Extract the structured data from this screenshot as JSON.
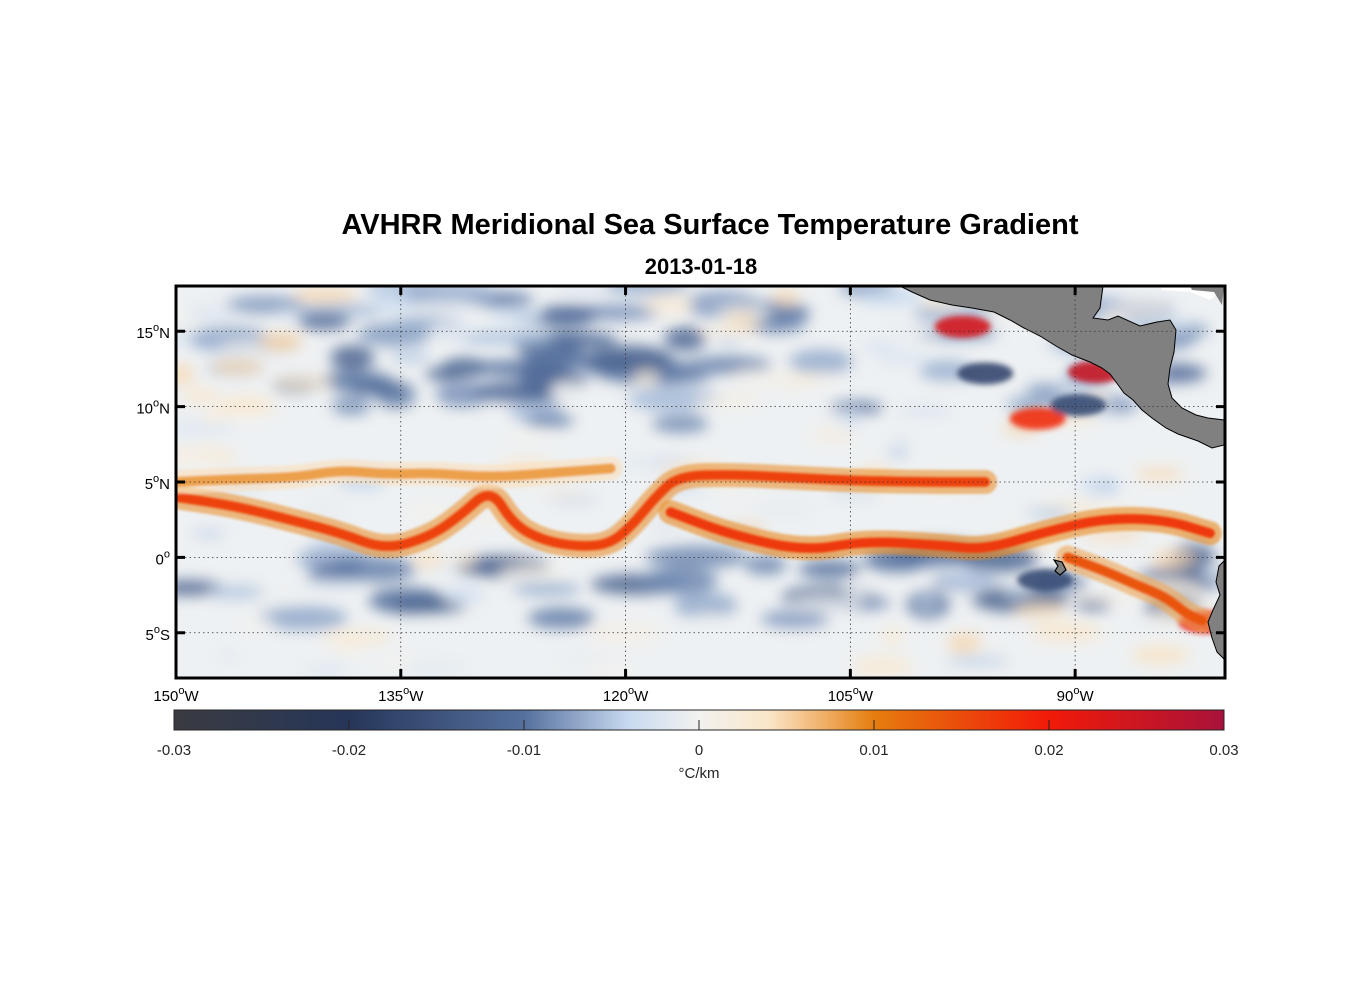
{
  "figure": {
    "title": "AVHRR Meridional Sea Surface Temperature Gradient",
    "subtitle": "2013-01-18"
  },
  "map": {
    "lon_range": [
      -150,
      -80
    ],
    "lat_range": [
      -8,
      18
    ],
    "lon_ticks": [
      {
        "value": -150,
        "deg": "150",
        "hemi": "W"
      },
      {
        "value": -135,
        "deg": "135",
        "hemi": "W"
      },
      {
        "value": -120,
        "deg": "120",
        "hemi": "W"
      },
      {
        "value": -105,
        "deg": "105",
        "hemi": "W"
      },
      {
        "value": -90,
        "deg": "90",
        "hemi": "W"
      }
    ],
    "lat_ticks": [
      {
        "value": 15,
        "deg": "15",
        "hemi": "N"
      },
      {
        "value": 10,
        "deg": "10",
        "hemi": "N"
      },
      {
        "value": 5,
        "deg": "5",
        "hemi": "N"
      },
      {
        "value": 0,
        "deg": "0",
        "hemi": ""
      },
      {
        "value": -5,
        "deg": "5",
        "hemi": "S"
      }
    ],
    "grid": true,
    "grid_style": "dotted",
    "land_color": "#808080"
  },
  "colorbar": {
    "label": "°C/km",
    "range": [
      -0.03,
      0.03
    ],
    "ticks": [
      {
        "value": -0.03,
        "label": "-0.03"
      },
      {
        "value": -0.02,
        "label": "-0.02"
      },
      {
        "value": -0.01,
        "label": "-0.01"
      },
      {
        "value": 0,
        "label": "0"
      },
      {
        "value": 0.01,
        "label": "0.01"
      },
      {
        "value": 0.02,
        "label": "0.02"
      },
      {
        "value": 0.03,
        "label": "0.03"
      }
    ],
    "colors": [
      {
        "value": -0.03,
        "color": "#3a3b40"
      },
      {
        "value": -0.02,
        "color": "#263659"
      },
      {
        "value": -0.01,
        "color": "#55709e"
      },
      {
        "value": -0.004,
        "color": "#c8daf0"
      },
      {
        "value": 0,
        "color": "#f2f2f0"
      },
      {
        "value": 0.004,
        "color": "#fbe6c8"
      },
      {
        "value": 0.01,
        "color": "#e57d0e"
      },
      {
        "value": 0.02,
        "color": "#f21a08"
      },
      {
        "value": 0.03,
        "color": "#a8123a"
      }
    ]
  },
  "chart_data": {
    "type": "heatmap",
    "title": "AVHRR Meridional Sea Surface Temperature Gradient",
    "subtitle": "2013-01-18",
    "variable_units": "°C/km",
    "x_range": [
      -150,
      -80
    ],
    "y_range": [
      -8,
      18
    ],
    "z_range": [
      -0.03,
      0.03
    ],
    "features": [
      {
        "kind": "positive_front",
        "value": 0.016,
        "path": [
          [
            -150,
            4
          ],
          [
            -146,
            3.4
          ],
          [
            -142,
            2.4
          ],
          [
            -139,
            1.6
          ],
          [
            -136,
            0.5
          ],
          [
            -133,
            1.4
          ],
          [
            -131,
            2.8
          ],
          [
            -129,
            4.6
          ],
          [
            -127.5,
            2.2
          ],
          [
            -125.5,
            1.1
          ],
          [
            -123,
            0.7
          ],
          [
            -121,
            0.9
          ],
          [
            -119.5,
            2.2
          ],
          [
            -118,
            4.0
          ],
          [
            -116.5,
            5.4
          ],
          [
            -113,
            5.5
          ],
          [
            -109,
            5.3
          ],
          [
            -105,
            5.1
          ],
          [
            -100,
            5.0
          ],
          [
            -96,
            5.0
          ]
        ]
      },
      {
        "kind": "positive_front",
        "value": 0.017,
        "path": [
          [
            -117,
            3.0
          ],
          [
            -113,
            1.5
          ],
          [
            -108,
            0.4
          ],
          [
            -104,
            1.1
          ],
          [
            -99,
            0.8
          ],
          [
            -96,
            0.5
          ],
          [
            -92,
            1.7
          ],
          [
            -88,
            2.6
          ],
          [
            -84,
            2.5
          ],
          [
            -81,
            1.6
          ]
        ]
      },
      {
        "kind": "positive_front",
        "value": 0.008,
        "path": [
          [
            -150,
            5.0
          ],
          [
            -146,
            5.2
          ],
          [
            -142,
            5.3
          ],
          [
            -139,
            5.8
          ],
          [
            -136,
            5.5
          ],
          [
            -133,
            5.6
          ],
          [
            -129,
            5.3
          ],
          [
            -125,
            5.6
          ],
          [
            -121,
            5.9
          ]
        ]
      },
      {
        "kind": "positive_front",
        "value": 0.014,
        "path": [
          [
            -90.5,
            0.0
          ],
          [
            -88,
            -0.9
          ],
          [
            -86,
            -1.8
          ],
          [
            -84,
            -2.6
          ],
          [
            -82.5,
            -3.8
          ],
          [
            -81.5,
            -4.2
          ]
        ]
      },
      {
        "kind": "positive_patch",
        "value": 0.024,
        "lon": -97.5,
        "lat": 15.3
      },
      {
        "kind": "positive_patch",
        "value": 0.026,
        "lon": -88.6,
        "lat": 12.3
      },
      {
        "kind": "positive_patch",
        "value": 0.018,
        "lon": -92.5,
        "lat": 9.2
      },
      {
        "kind": "positive_patch",
        "value": 0.021,
        "lon": -81.2,
        "lat": -4.3
      },
      {
        "kind": "negative_patch",
        "value": -0.017,
        "lon": -96.0,
        "lat": 12.2
      },
      {
        "kind": "negative_patch",
        "value": -0.016,
        "lon": -89.8,
        "lat": 10.1
      },
      {
        "kind": "negative_patch",
        "value": -0.016,
        "lon": -92.0,
        "lat": -1.5
      },
      {
        "kind": "negative_band",
        "value": -0.013,
        "lat_center": -2.0
      },
      {
        "kind": "negative_band",
        "value": -0.012,
        "lat_center": 11.0
      },
      {
        "kind": "negative_band",
        "value": -0.011,
        "lat_center": 16.0
      }
    ]
  }
}
